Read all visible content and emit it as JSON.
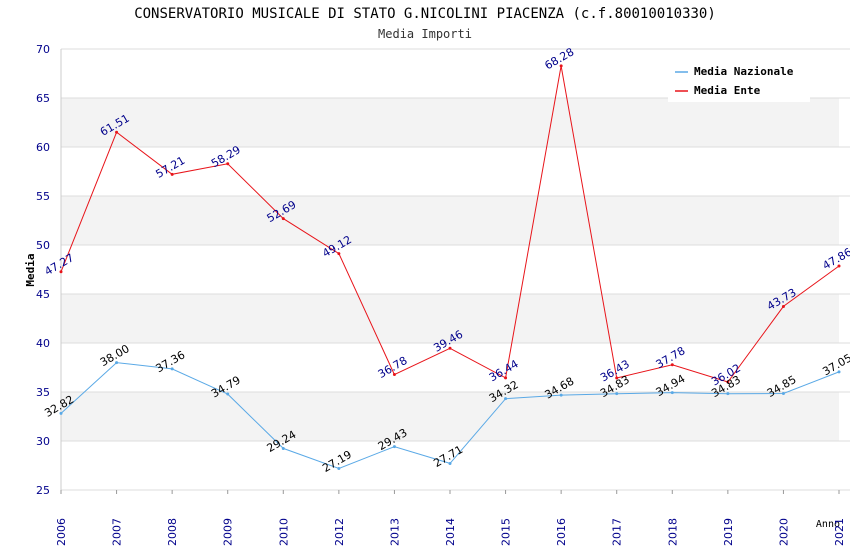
{
  "chart_data": {
    "type": "line",
    "title": "CONSERVATORIO MUSICALE DI STATO G.NICOLINI PIACENZA (c.f.80010010330)",
    "subtitle": "Media Importi",
    "ylabel": "Media",
    "xlabel": "Anno",
    "ylim": [
      25,
      70
    ],
    "y_ticks": [
      25,
      30,
      35,
      40,
      45,
      50,
      55,
      60,
      65,
      70
    ],
    "categories": [
      "2006",
      "2007",
      "2008",
      "2009",
      "2010",
      "2012",
      "2013",
      "2014",
      "2015",
      "2016",
      "2017",
      "2018",
      "2019",
      "2020",
      "2021"
    ],
    "grid": true,
    "legend_position": "top-right",
    "series": [
      {
        "name": "Media Nazionale",
        "color": "#5aa9e6",
        "label_color": "#000000",
        "values": [
          32.82,
          38.0,
          37.36,
          34.79,
          29.24,
          27.19,
          29.43,
          27.71,
          34.32,
          34.68,
          34.83,
          34.94,
          34.83,
          34.85,
          37.05
        ],
        "labels": [
          "32.82",
          "38.00",
          "37.36",
          "34.79",
          "29.24",
          "27.19",
          "29.43",
          "27.71",
          "34.32",
          "34.68",
          "34.83",
          "34.94",
          "34.83",
          "34.85",
          "37.05"
        ]
      },
      {
        "name": "Media Ente",
        "color": "#e8141a",
        "label_color": "#00008b",
        "values": [
          47.27,
          61.51,
          57.21,
          58.29,
          52.69,
          49.12,
          36.78,
          39.46,
          36.44,
          68.28,
          36.43,
          37.78,
          36.02,
          43.73,
          47.86
        ],
        "labels": [
          "47.27",
          "61.51",
          "57.21",
          "58.29",
          "52.69",
          "49.12",
          "36.78",
          "39.46",
          "36.44",
          "68.28",
          "36.43",
          "37.78",
          "36.02",
          "43.73",
          "47.86"
        ]
      }
    ]
  }
}
